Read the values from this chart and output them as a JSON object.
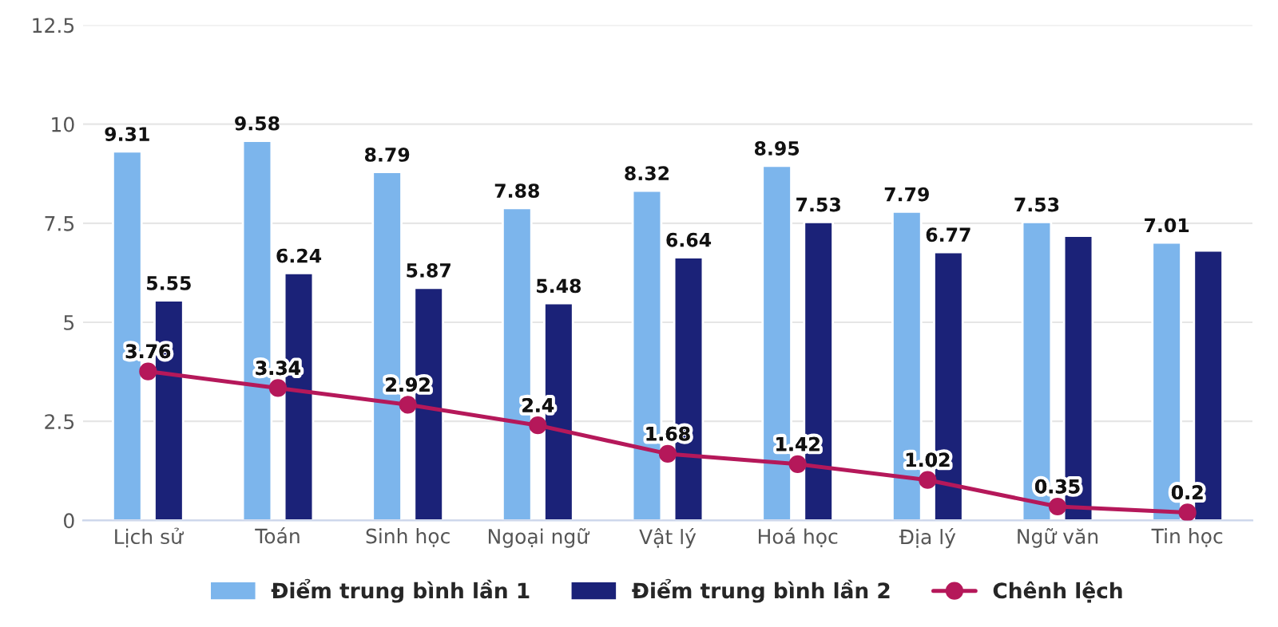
{
  "chart_data": {
    "type": "bar",
    "categories": [
      "Lịch sử",
      "Toán",
      "Sinh học",
      "Ngoại ngữ",
      "Vật lý",
      "Hoá học",
      "Địa lý",
      "Ngữ văn",
      "Tin học"
    ],
    "series": [
      {
        "name": "Điểm trung bình lần 1",
        "color": "#7cb5ec",
        "values": [
          9.31,
          9.58,
          8.79,
          7.88,
          8.32,
          8.95,
          7.79,
          7.53,
          7.01
        ],
        "value_labels": [
          "9.31",
          "9.58",
          "8.79",
          "7.88",
          "8.32",
          "8.95",
          "7.79",
          "7.53",
          "7.01"
        ]
      },
      {
        "name": "Điểm trung bình lần 2",
        "color": "#1b2278",
        "values": [
          5.55,
          6.24,
          5.87,
          5.48,
          6.64,
          7.53,
          6.77,
          7.18,
          6.81
        ],
        "value_labels": [
          "5.55",
          "6.24",
          "5.87",
          "5.48",
          "6.64",
          "7.53",
          "6.77",
          null,
          null
        ]
      },
      {
        "name": "Chênh lệch",
        "type": "line",
        "color": "#b5185a",
        "marker": "circle",
        "values": [
          3.76,
          3.34,
          2.92,
          2.4,
          1.68,
          1.42,
          1.02,
          0.35,
          0.2
        ],
        "value_labels": [
          "3.76",
          "3.34",
          "2.92",
          "2.4",
          "1.68",
          "1.42",
          "1.02",
          "0.35",
          "0.2"
        ]
      }
    ],
    "ylim": [
      0,
      12.5
    ],
    "yticks": [
      0,
      2.5,
      5,
      7.5,
      10,
      12.5
    ],
    "grid": "y",
    "legend": "bottom"
  }
}
